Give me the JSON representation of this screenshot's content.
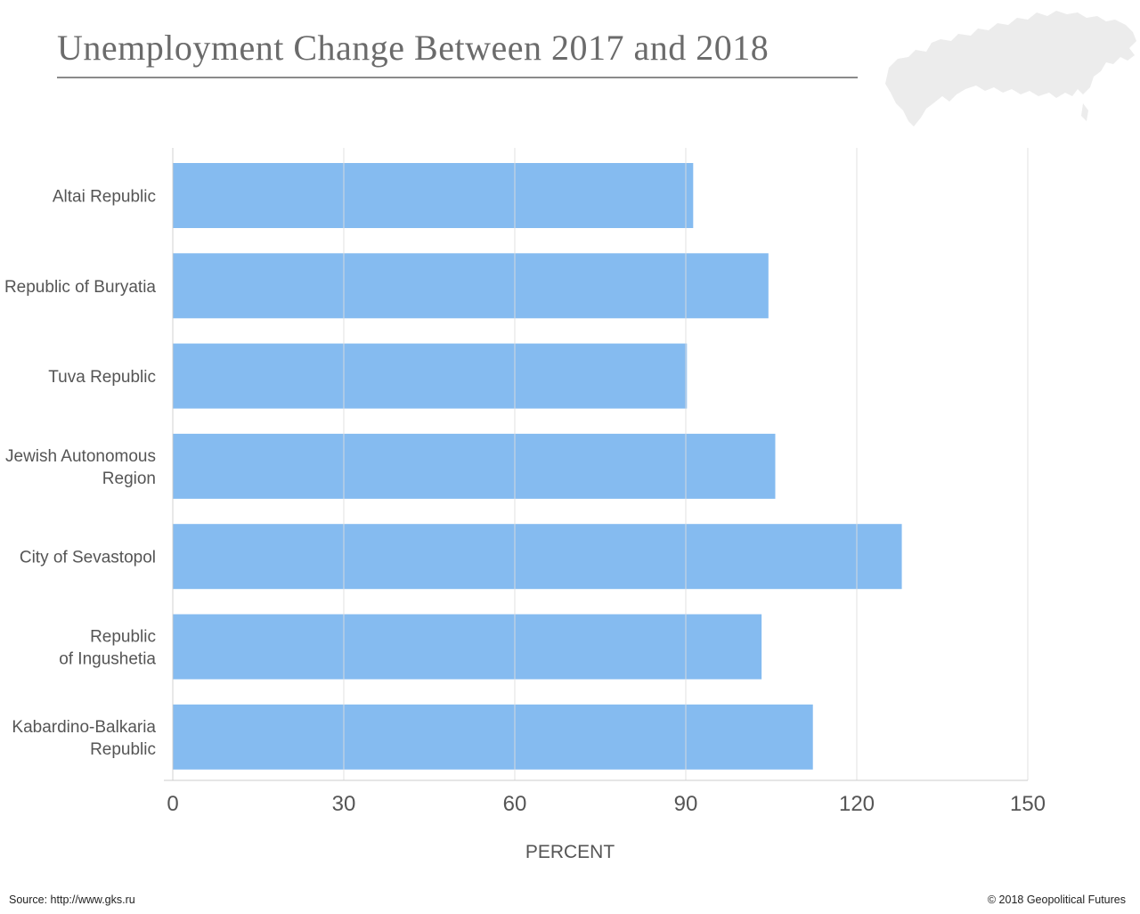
{
  "header": {
    "title": "Unemployment Change Between 2017 and 2018"
  },
  "footer": {
    "source": "Source: http://www.gks.ru",
    "copyright": "© 2018 Geopolitical Futures"
  },
  "colors": {
    "bar": "#85bbf0",
    "grid": "#dddddd",
    "text": "#555555",
    "map": "#ececec"
  },
  "decor": {
    "map_icon": "russia-map-silhouette"
  },
  "chart_data": {
    "type": "bar",
    "orientation": "horizontal",
    "title": "Unemployment Change Between 2017 and 2018",
    "xlabel": "PERCENT",
    "ylabel": "",
    "categories": [
      [
        "Altai Republic"
      ],
      [
        "Republic of Buryatia"
      ],
      [
        "Tuva Republic"
      ],
      [
        "Jewish Autonomous",
        "Region"
      ],
      [
        "City of  Sevastopol"
      ],
      [
        "Republic",
        "of Ingushetia"
      ],
      [
        "Kabardino-Balkaria",
        "Republic"
      ]
    ],
    "values": [
      91.3,
      104.5,
      90.2,
      105.7,
      127.9,
      103.3,
      112.3
    ],
    "xlim": [
      0,
      150
    ],
    "xticks": [
      0,
      30,
      60,
      90,
      120,
      150
    ],
    "grid": true,
    "legend": "none"
  }
}
